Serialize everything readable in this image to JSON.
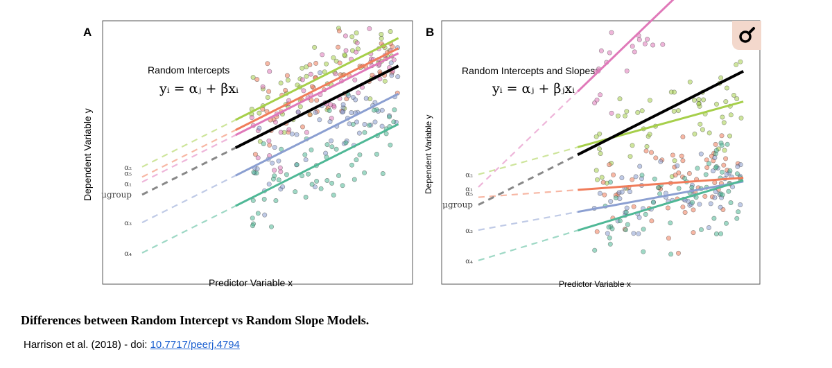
{
  "panels": [
    {
      "letter": "A",
      "title": "Random Intercepts",
      "equation": "yᵢ = αⱼ + βxᵢ",
      "xlabel": "Predictor Variable x",
      "ylabel": "Dependent Variable y",
      "intercept_labels": [
        "α₂",
        "α₅",
        "α₁",
        "μgroup",
        "α₃",
        "α₄"
      ]
    },
    {
      "letter": "B",
      "title": "Random Intercepts and Slopes",
      "equation": "yᵢ = αⱼ + βⱼxᵢ",
      "xlabel": "Predictor Variable x",
      "ylabel": "Dependent Variable y",
      "intercept_labels": [
        "α₂",
        "α₅",
        "α₁",
        "μgroup",
        "α₃",
        "α₄"
      ]
    }
  ],
  "chart_data": [
    {
      "type": "scatter",
      "title": "Random Intercepts",
      "xlabel": "Predictor Variable x",
      "ylabel": "Dependent Variable y",
      "xlim": [
        0,
        10
      ],
      "ylim": [
        0,
        10
      ],
      "grid": false,
      "series": [
        {
          "name": "α₂",
          "color": "#a6cf4a",
          "intercept": 4.5,
          "slope": 0.53,
          "x_range": [
            3.5,
            9.6
          ]
        },
        {
          "name": "α₅",
          "color": "#f07c5a",
          "intercept": 4.1,
          "slope": 0.53,
          "x_range": [
            3.5,
            9.6
          ]
        },
        {
          "name": "α₁",
          "color": "#e079b9",
          "intercept": 3.9,
          "slope": 0.53,
          "x_range": [
            3.5,
            9.6
          ]
        },
        {
          "name": "μgroup",
          "color": "#000000",
          "intercept": 3.4,
          "slope": 0.53,
          "x_range": [
            3.5,
            9.6
          ]
        },
        {
          "name": "α₃",
          "color": "#8b9fd1",
          "intercept": 2.3,
          "slope": 0.53,
          "x_range": [
            3.5,
            9.6
          ]
        },
        {
          "name": "α₄",
          "color": "#4fb896",
          "intercept": 1.1,
          "slope": 0.53,
          "x_range": [
            3.5,
            9.6
          ]
        }
      ]
    },
    {
      "type": "scatter",
      "title": "Random Intercepts and Slopes",
      "xlabel": "Predictor Variable x",
      "ylabel": "Dependent Variable y",
      "xlim": [
        0,
        10
      ],
      "ylim": [
        0,
        10
      ],
      "grid": false,
      "series": [
        {
          "name": "α₂",
          "color": "#a6cf4a",
          "intercept": 4.2,
          "slope": 0.3,
          "x_range": [
            3.6,
            9.6
          ]
        },
        {
          "name": "α₅",
          "color": "#f07c5a",
          "intercept": 3.3,
          "slope": 0.08,
          "x_range": [
            3.6,
            9.6
          ]
        },
        {
          "name": "α₁",
          "color": "#e079b9",
          "intercept": 3.7,
          "slope": 1.05,
          "x_range": [
            3.6,
            9.6
          ]
        },
        {
          "name": "μgroup",
          "color": "#000000",
          "intercept": 3.0,
          "slope": 0.55,
          "x_range": [
            3.6,
            9.6
          ]
        },
        {
          "name": "α₃",
          "color": "#8b9fd1",
          "intercept": 2.0,
          "slope": 0.2,
          "x_range": [
            3.6,
            9.6
          ]
        },
        {
          "name": "α₄",
          "color": "#4fb896",
          "intercept": 0.8,
          "slope": 0.33,
          "x_range": [
            3.6,
            9.6
          ]
        }
      ]
    }
  ],
  "caption": "Differences between Random Intercept vs Random Slope Models.",
  "citation": {
    "prefix": "Harrison et al. (2018) - doi: ",
    "link_text": "10.7717/peerj.4794"
  },
  "zoom_icon": "magnifier-icon"
}
